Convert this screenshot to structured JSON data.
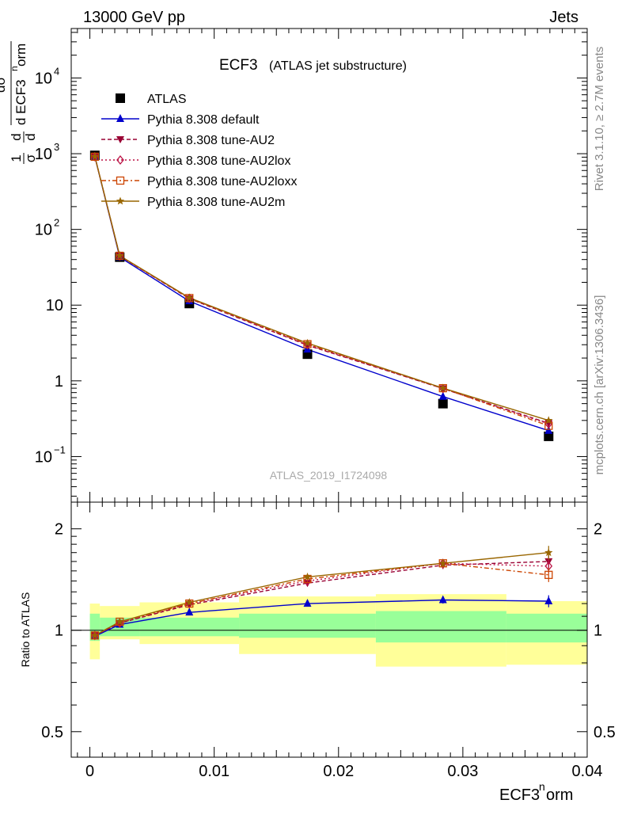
{
  "header": {
    "left": "13000 GeV pp",
    "right": "Jets"
  },
  "side_labels": {
    "rivet": "Rivet 3.1.10, ≥ 2.7M events",
    "mcplots": "mcplots.cern.ch [arXiv:1306.3436]"
  },
  "chart_data": [
    {
      "type": "line",
      "title": "ECF3",
      "subtitle": "(ATLAS jet substructure)",
      "analysis_label": "ATLAS_2019_I1724098",
      "ylabel": {
        "frac1": "1",
        "frac1_den": "σ",
        "d": "d",
        "d_den": "d ECF3",
        "sigma_num": "dσ",
        "sup": "n",
        "den_tail": "orm"
      },
      "y_scale": "log",
      "ylim": [
        0.025,
        45000
      ],
      "yticks": [
        {
          "value": 0.1,
          "base": "10",
          "exp": "−1"
        },
        {
          "value": 1,
          "base": "1",
          "exp": ""
        },
        {
          "value": 10,
          "base": "10",
          "exp": ""
        },
        {
          "value": 100,
          "base": "10",
          "exp": "2"
        },
        {
          "value": 1000,
          "base": "10",
          "exp": "3"
        },
        {
          "value": 10000,
          "base": "10",
          "exp": "4"
        }
      ],
      "xlim": [
        -0.0015,
        0.04
      ],
      "x": [
        0.0004,
        0.0024,
        0.008,
        0.0175,
        0.0284,
        0.0369
      ],
      "legend_placement": "top-left",
      "series": [
        {
          "name": "ATLAS",
          "color": "#000000",
          "marker": "square",
          "dash": "",
          "line": false,
          "values": [
            950,
            43,
            10.5,
            2.25,
            0.5,
            0.185
          ]
        },
        {
          "name": "Pythia 8.308 default",
          "color": "#0000cc",
          "marker": "triangle-up",
          "dash": "",
          "line": true,
          "values": [
            910,
            43,
            11.3,
            2.6,
            0.62,
            0.22
          ]
        },
        {
          "name": "Pythia 8.308 tune-AU2",
          "color": "#990033",
          "marker": "triangle-down",
          "dash": "5,3",
          "line": true,
          "values": [
            915,
            44.5,
            12.2,
            2.95,
            0.79,
            0.275
          ]
        },
        {
          "name": "Pythia 8.308 tune-AU2lox",
          "color": "#bb1144",
          "marker": "diamond",
          "dash": "2,3",
          "line": true,
          "values": [
            912,
            44.5,
            12.3,
            3.0,
            0.79,
            0.27
          ]
        },
        {
          "name": "Pythia 8.308 tune-AU2loxx",
          "color": "#cc4400",
          "marker": "square-open",
          "dash": "6,3,2,3",
          "line": true,
          "values": [
            912,
            44.8,
            12.4,
            3.05,
            0.8,
            0.255
          ]
        },
        {
          "name": "Pythia 8.308 tune-AU2m",
          "color": "#996600",
          "marker": "star",
          "dash": "",
          "line": true,
          "values": [
            915,
            45,
            12.5,
            3.15,
            0.8,
            0.3
          ]
        }
      ]
    },
    {
      "type": "line",
      "ylabel": "Ratio to ATLAS",
      "xlabel": {
        "main": "ECF3",
        "sup": "n",
        "tail": "orm"
      },
      "y_scale": "log",
      "ylim": [
        0.42,
        2.4
      ],
      "yticks": [
        0.5,
        1,
        2
      ],
      "xlim": [
        -0.0015,
        0.04
      ],
      "xticks": [
        0,
        0.01,
        0.02,
        0.03,
        0.04
      ],
      "xtick_labels": [
        "0",
        "0.01",
        "0.02",
        "0.03",
        "0.04"
      ],
      "x": [
        0.0004,
        0.0024,
        0.008,
        0.0175,
        0.0284,
        0.0369
      ],
      "reference": 1,
      "bands": [
        {
          "xlow": 0.0,
          "xhigh": 0.0008,
          "green": [
            0.93,
            1.12
          ],
          "yellow": [
            0.82,
            1.2
          ]
        },
        {
          "xlow": 0.0008,
          "xhigh": 0.004,
          "green": [
            0.96,
            1.09
          ],
          "yellow": [
            0.94,
            1.18
          ]
        },
        {
          "xlow": 0.004,
          "xhigh": 0.012,
          "green": [
            0.96,
            1.09
          ],
          "yellow": [
            0.91,
            1.21
          ]
        },
        {
          "xlow": 0.012,
          "xhigh": 0.023,
          "green": [
            0.95,
            1.12
          ],
          "yellow": [
            0.85,
            1.26
          ]
        },
        {
          "xlow": 0.023,
          "xhigh": 0.0335,
          "green": [
            0.92,
            1.14
          ],
          "yellow": [
            0.78,
            1.28
          ]
        },
        {
          "xlow": 0.0335,
          "xhigh": 0.04,
          "green": [
            0.92,
            1.12
          ],
          "yellow": [
            0.79,
            1.22
          ]
        }
      ],
      "band_colors": {
        "green": "#99ff99",
        "yellow": "#ffff99"
      },
      "series": [
        {
          "name": "Pythia 8.308 default",
          "values": [
            0.96,
            1.04,
            1.13,
            1.2,
            1.23,
            1.22
          ],
          "err": [
            0.01,
            0.01,
            0.01,
            0.01,
            0.03,
            0.05
          ]
        },
        {
          "name": "Pythia 8.308 tune-AU2",
          "values": [
            0.965,
            1.05,
            1.19,
            1.38,
            1.56,
            1.6
          ],
          "err": [
            0.01,
            0.01,
            0.01,
            0.02,
            0.04,
            0.07
          ]
        },
        {
          "name": "Pythia 8.308 tune-AU2lox",
          "values": [
            0.965,
            1.05,
            1.2,
            1.4,
            1.58,
            1.55
          ],
          "err": [
            0.01,
            0.01,
            0.01,
            0.02,
            0.04,
            0.07
          ]
        },
        {
          "name": "Pythia 8.308 tune-AU2loxx",
          "values": [
            0.965,
            1.06,
            1.2,
            1.42,
            1.58,
            1.46
          ],
          "err": [
            0.01,
            0.01,
            0.01,
            0.02,
            0.04,
            0.07
          ]
        },
        {
          "name": "Pythia 8.308 tune-AU2m",
          "values": [
            0.965,
            1.06,
            1.21,
            1.44,
            1.58,
            1.7
          ],
          "err": [
            0.01,
            0.01,
            0.01,
            0.02,
            0.04,
            0.08
          ]
        }
      ]
    }
  ]
}
